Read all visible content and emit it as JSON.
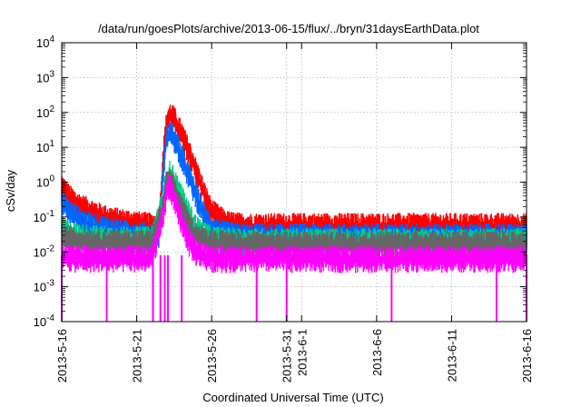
{
  "chart_data": {
    "type": "line",
    "title": "/data/run/goesPlots/archive/2013-06-15/flux/../bryn/31daysEarthData.plot",
    "xlabel": "Coordinated Universal Time (UTC)",
    "ylabel": "cSv/day",
    "yscale": "log",
    "ylim": [
      0.0001,
      10000
    ],
    "xlim": [
      "2013-05-16",
      "2013-06-16"
    ],
    "grid": true,
    "legend": "none",
    "x_ticks": [
      "2013-5-16",
      "2013-5-21",
      "2013-5-26",
      "2013-5-31",
      "2013-6-1",
      "2013-6-6",
      "2013-6-11",
      "2013-6-16"
    ],
    "y_ticks": [
      {
        "base": "10",
        "exp": "-4"
      },
      {
        "base": "10",
        "exp": "-3"
      },
      {
        "base": "10",
        "exp": "-2"
      },
      {
        "base": "10",
        "exp": "-1"
      },
      {
        "base": "10",
        "exp": "0"
      },
      {
        "base": "10",
        "exp": "1"
      },
      {
        "base": "10",
        "exp": "2"
      },
      {
        "base": "10",
        "exp": "3"
      },
      {
        "base": "10",
        "exp": "4"
      }
    ],
    "series": [
      {
        "color": "#ff0000",
        "x": [
          "2013-05-16",
          "2013-05-16T12",
          "2013-05-17",
          "2013-05-18",
          "2013-05-19",
          "2013-05-20",
          "2013-05-21",
          "2013-05-22",
          "2013-05-22T12",
          "2013-05-22T18",
          "2013-05-23",
          "2013-05-23T06",
          "2013-05-23T12",
          "2013-05-24",
          "2013-05-24T12",
          "2013-05-25",
          "2013-05-25T12",
          "2013-05-26",
          "2013-05-27",
          "2013-05-28",
          "2013-06-01",
          "2013-06-05",
          "2013-06-10",
          "2013-06-14",
          "2013-06-16"
        ],
        "values": [
          0.8,
          0.4,
          0.25,
          0.15,
          0.1,
          0.08,
          0.07,
          0.06,
          0.06,
          5,
          60,
          90,
          70,
          25,
          8,
          2,
          0.5,
          0.15,
          0.07,
          0.06,
          0.06,
          0.06,
          0.06,
          0.06,
          0.06
        ]
      },
      {
        "color": "#0066ff",
        "x": [
          "2013-05-16",
          "2013-05-16T12",
          "2013-05-17",
          "2013-05-18",
          "2013-05-19",
          "2013-05-20",
          "2013-05-21",
          "2013-05-22",
          "2013-05-22T12",
          "2013-05-22T18",
          "2013-05-23",
          "2013-05-23T06",
          "2013-05-23T12",
          "2013-05-24",
          "2013-05-24T12",
          "2013-05-25",
          "2013-05-25T12",
          "2013-05-26",
          "2013-05-27",
          "2013-05-28",
          "2013-06-01",
          "2013-06-05",
          "2013-06-10",
          "2013-06-14",
          "2013-06-16"
        ],
        "values": [
          0.3,
          0.15,
          0.1,
          0.06,
          0.05,
          0.04,
          0.035,
          0.03,
          0.03,
          2,
          20,
          30,
          20,
          6,
          1.5,
          0.4,
          0.12,
          0.05,
          0.035,
          0.03,
          0.03,
          0.03,
          0.03,
          0.03,
          0.03
        ]
      },
      {
        "color": "#00cc88",
        "x": [
          "2013-05-16",
          "2013-05-17",
          "2013-05-19",
          "2013-05-21",
          "2013-05-22",
          "2013-05-22T18",
          "2013-05-23",
          "2013-05-23T06",
          "2013-05-23T12",
          "2013-05-24",
          "2013-05-24T12",
          "2013-05-25",
          "2013-05-26",
          "2013-05-28",
          "2013-06-01",
          "2013-06-06",
          "2013-06-11",
          "2013-06-16"
        ],
        "values": [
          0.05,
          0.03,
          0.025,
          0.025,
          0.025,
          0.3,
          1.5,
          2,
          1.2,
          0.4,
          0.12,
          0.05,
          0.025,
          0.022,
          0.022,
          0.022,
          0.022,
          0.022
        ]
      },
      {
        "color": "#666666",
        "x": [
          "2013-05-16",
          "2013-05-17",
          "2013-05-19",
          "2013-05-21",
          "2013-05-22",
          "2013-05-22T18",
          "2013-05-23",
          "2013-05-23T06",
          "2013-05-23T12",
          "2013-05-24",
          "2013-05-24T12",
          "2013-05-25",
          "2013-05-26",
          "2013-05-28",
          "2013-06-01",
          "2013-06-06",
          "2013-06-11",
          "2013-06-16"
        ],
        "values": [
          0.03,
          0.022,
          0.02,
          0.02,
          0.02,
          0.2,
          1,
          1.2,
          0.6,
          0.2,
          0.06,
          0.03,
          0.02,
          0.018,
          0.018,
          0.018,
          0.018,
          0.018
        ]
      },
      {
        "color": "#ff00ff",
        "x": [
          "2013-05-16",
          "2013-05-17",
          "2013-05-19",
          "2013-05-21",
          "2013-05-22",
          "2013-05-22T18",
          "2013-05-23",
          "2013-05-23T06",
          "2013-05-23T12",
          "2013-05-24",
          "2013-05-24T12",
          "2013-05-25",
          "2013-05-26",
          "2013-05-28",
          "2013-06-01",
          "2013-06-06",
          "2013-06-11",
          "2013-06-16"
        ],
        "values": [
          0.008,
          0.007,
          0.007,
          0.007,
          0.007,
          0.1,
          0.6,
          0.8,
          0.3,
          0.08,
          0.02,
          0.01,
          0.007,
          0.007,
          0.007,
          0.007,
          0.007,
          0.007
        ]
      }
    ],
    "dropouts": [
      "2013-05-16",
      "2013-05-19",
      "2013-05-22T02",
      "2013-05-22T14",
      "2013-05-22T21",
      "2013-05-23T02",
      "2013-05-24",
      "2013-05-29",
      "2013-05-31",
      "2013-06-07",
      "2013-06-14",
      "2013-06-16"
    ]
  }
}
